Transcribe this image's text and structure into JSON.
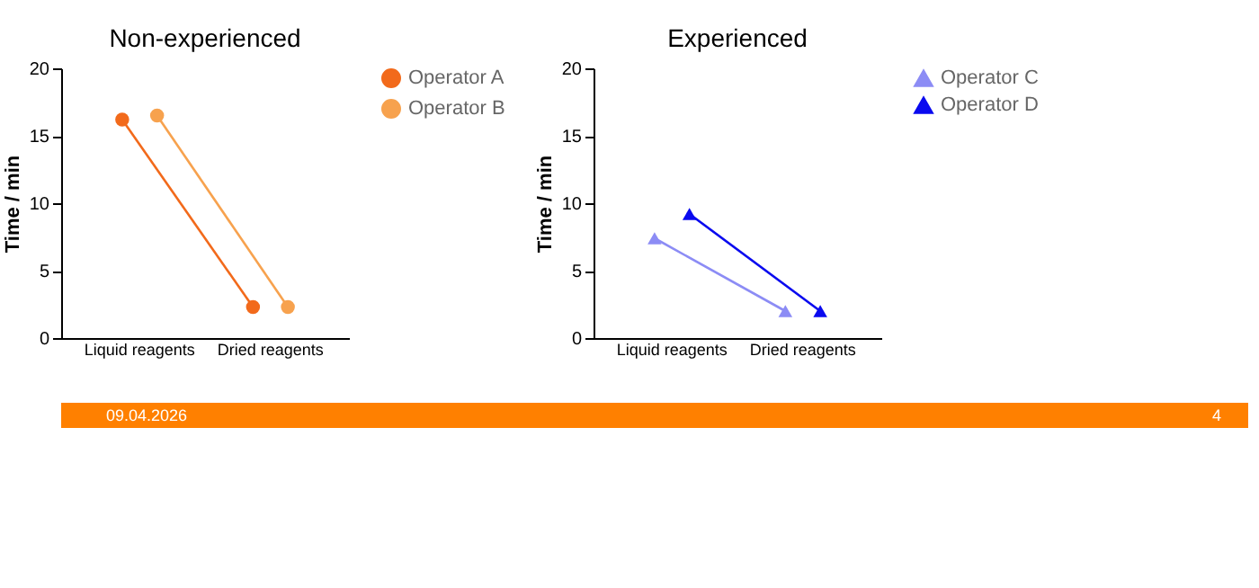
{
  "chart_data": [
    {
      "type": "line",
      "title": "Non-experienced",
      "ylabel": "Time / min",
      "categories": [
        "Liquid reagents",
        "Dried reagents"
      ],
      "ylim": [
        0,
        20
      ],
      "yticks": [
        0,
        5,
        10,
        15,
        20
      ],
      "marker": "circle",
      "legend": "top right",
      "grid": false,
      "series": [
        {
          "name": "Operator A",
          "color": "#f26a1b",
          "values": [
            16.2,
            2.3
          ]
        },
        {
          "name": "Operator B",
          "color": "#f7a24e",
          "values": [
            16.5,
            2.3
          ]
        }
      ],
      "annotations": [
        "09.04.2026",
        "4"
      ]
    },
    {
      "type": "line",
      "title": "Experienced",
      "ylabel": "Time / min",
      "categories": [
        "Liquid reagents",
        "Dried reagents"
      ],
      "ylim": [
        0,
        20
      ],
      "yticks": [
        0,
        5,
        10,
        15,
        20
      ],
      "marker": "triangle",
      "legend": "top right",
      "grid": false,
      "series": [
        {
          "name": "Operator C",
          "color": "#8c8cf5",
          "values": [
            7.4,
            2.0
          ]
        },
        {
          "name": "Operator D",
          "color": "#0a0aef",
          "values": [
            9.2,
            2.0
          ]
        }
      ]
    }
  ]
}
